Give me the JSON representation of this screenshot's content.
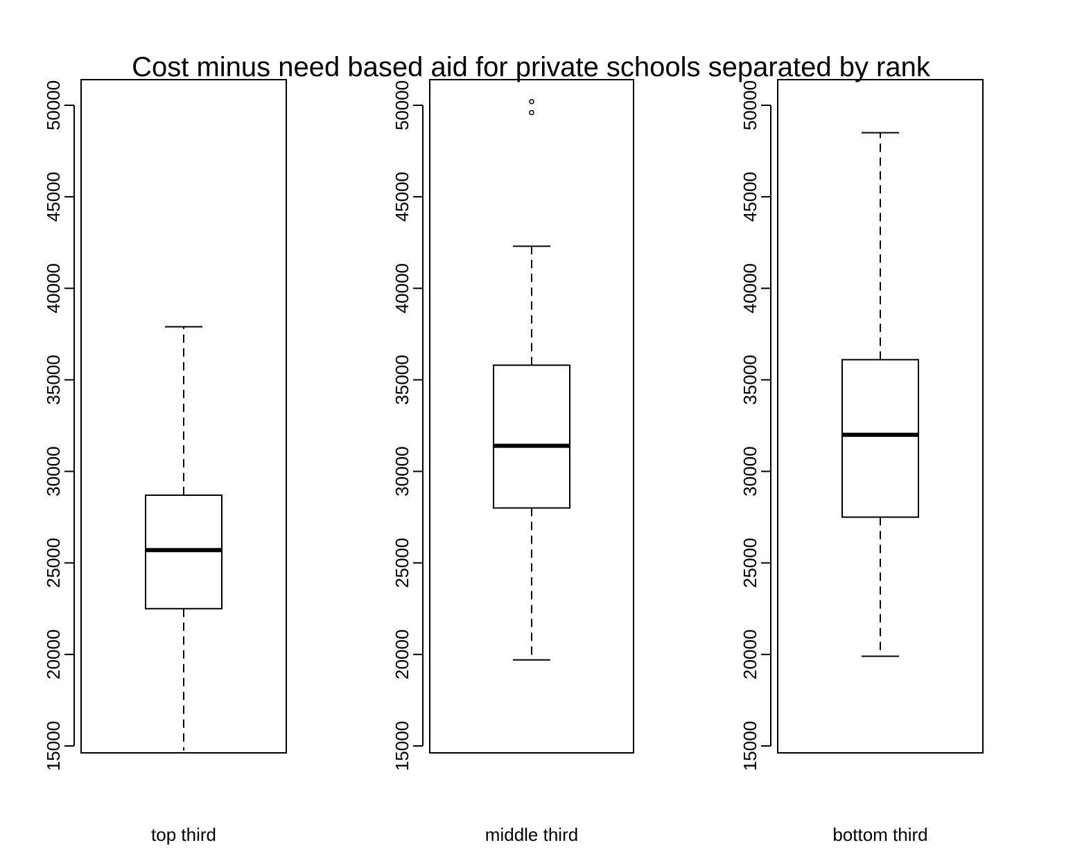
{
  "chart_data": {
    "type": "boxplot",
    "title": "Cost minus need based aid for private schools separated by rank",
    "ylim": [
      15000,
      50000
    ],
    "yticks": [
      "15000",
      "20000",
      "25000",
      "30000",
      "35000",
      "40000",
      "45000",
      "50000"
    ],
    "grid": false,
    "panels": [
      {
        "label": "top third",
        "whisker_low": 14700,
        "q1": 22500,
        "median": 25700,
        "q3": 28700,
        "whisker_high": 37900,
        "outliers": []
      },
      {
        "label": "middle third",
        "whisker_low": 19700,
        "q1": 28000,
        "median": 31400,
        "q3": 35800,
        "whisker_high": 42300,
        "outliers": [
          49600,
          50200
        ]
      },
      {
        "label": "bottom third",
        "whisker_low": 19900,
        "q1": 27500,
        "median": 32000,
        "q3": 36100,
        "whisker_high": 48500,
        "outliers": []
      }
    ]
  }
}
